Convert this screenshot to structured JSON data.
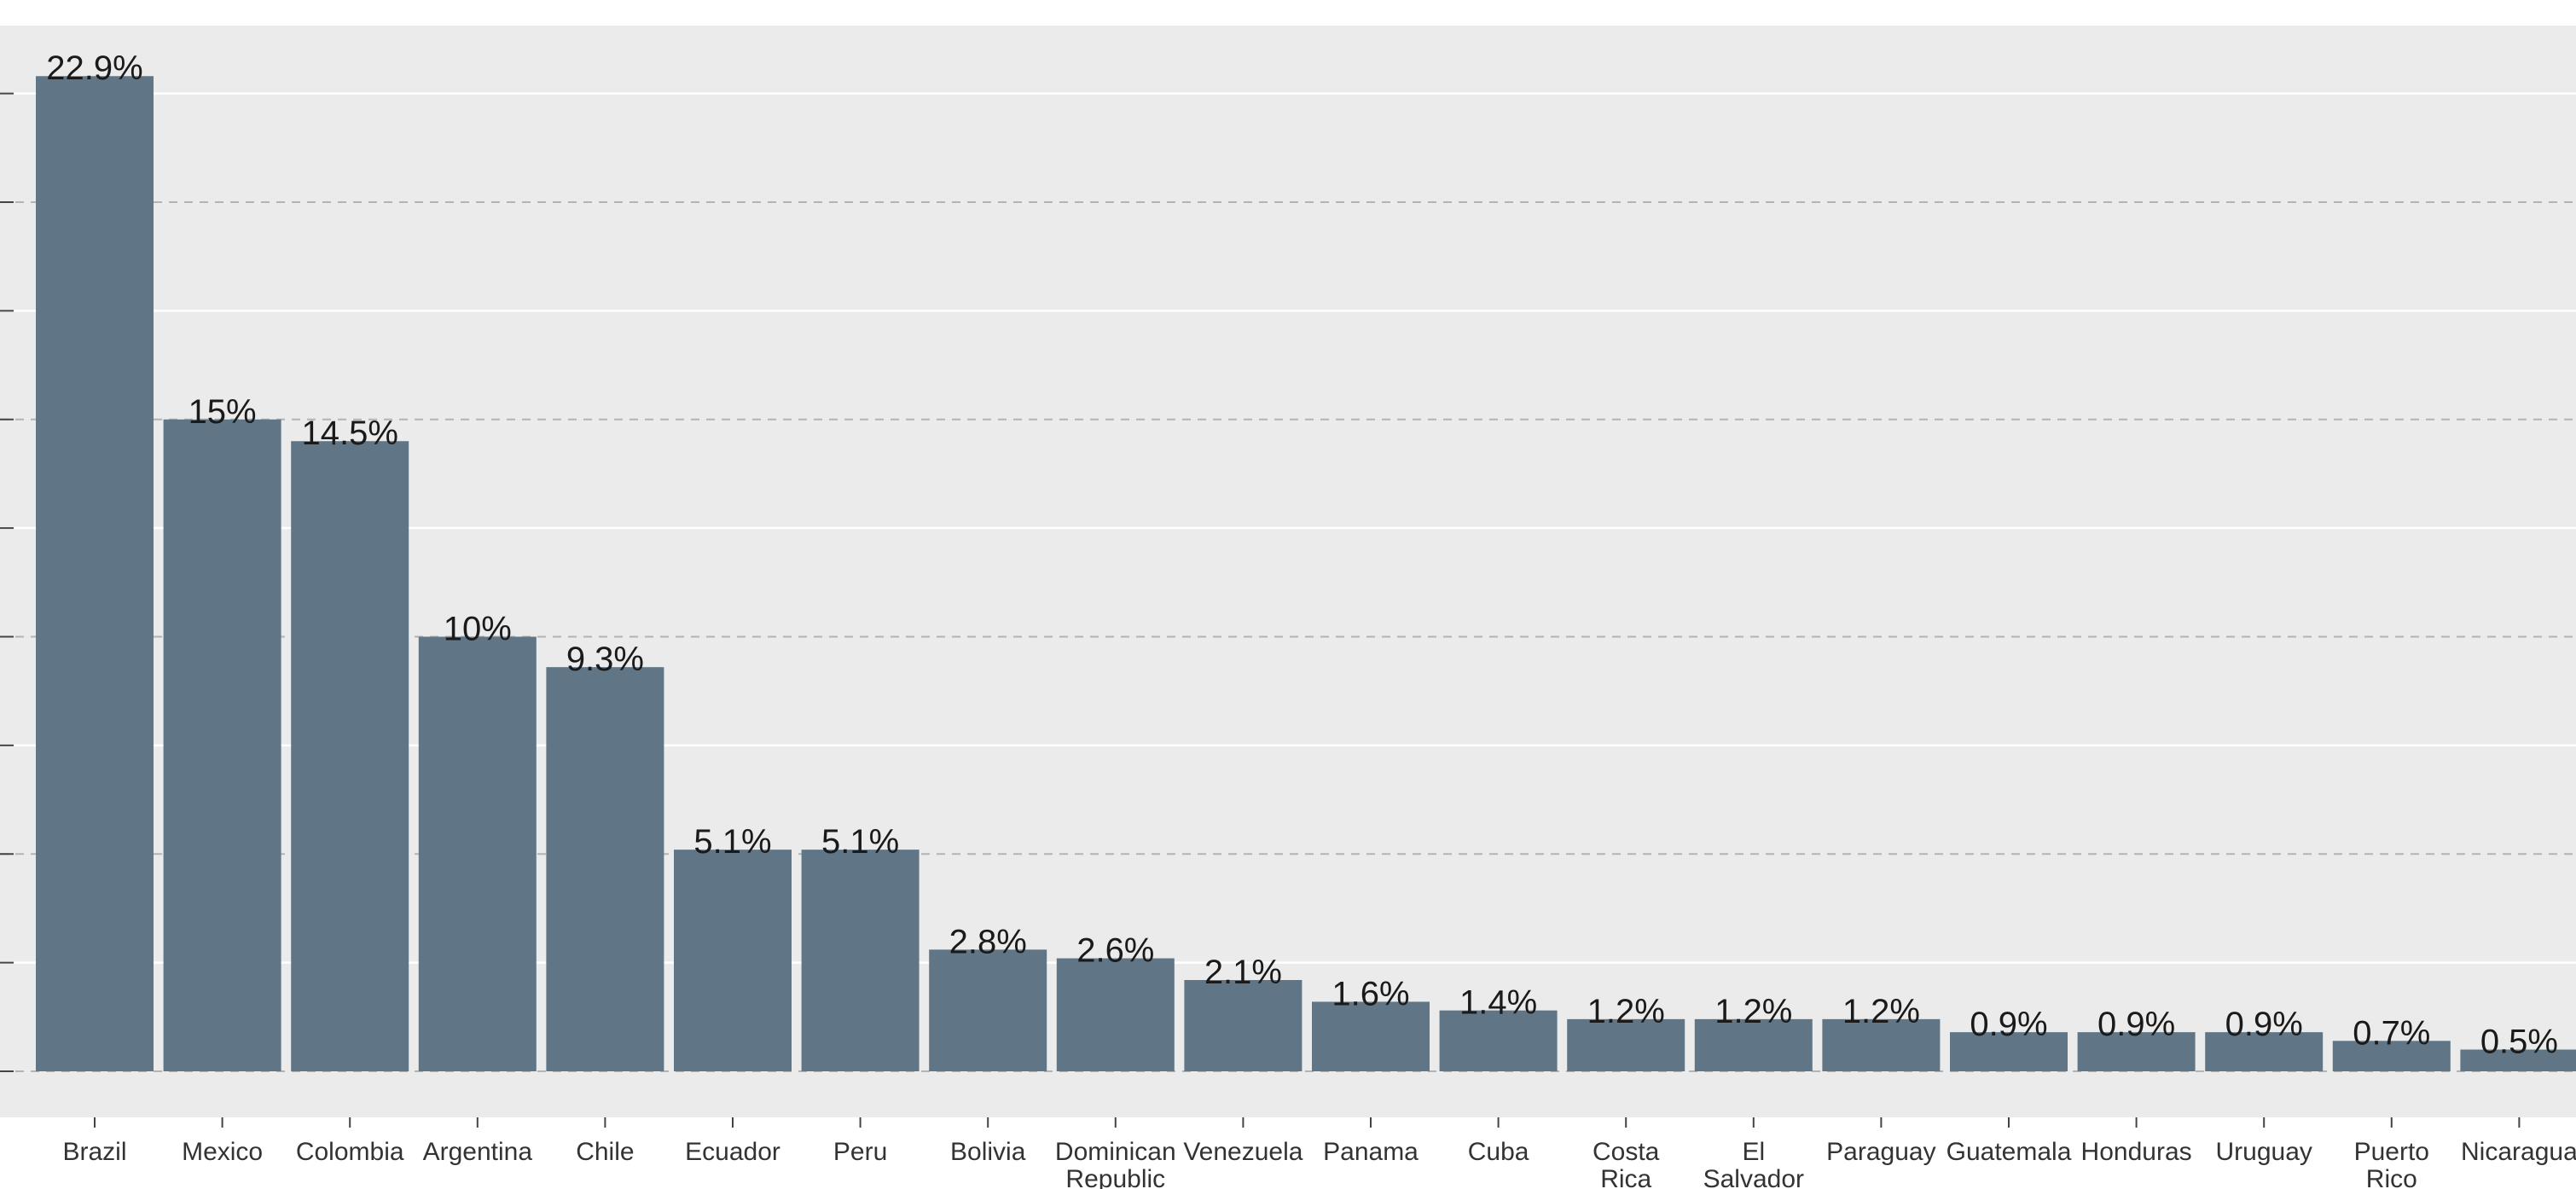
{
  "chart_data": {
    "type": "bar",
    "title": "",
    "xlabel": "",
    "ylabel": "",
    "ylim": [
      0,
      24.5
    ],
    "grid": true,
    "legend": "none",
    "bar_color": "#607686",
    "panel_background": "#ebebeb",
    "categories": [
      "Brazil",
      "Mexico",
      "Colombia",
      "Argentina",
      "Chile",
      "Ecuador",
      "Peru",
      "Bolivia",
      "Dominican Republic",
      "Venezuela",
      "Panama",
      "Cuba",
      "Costa Rica",
      "El Salvador",
      "Paraguay",
      "Guatemala",
      "Honduras",
      "Uruguay",
      "Puerto Rico",
      "Nicaragua"
    ],
    "values": [
      22.9,
      15,
      14.5,
      10,
      9.3,
      5.1,
      5.1,
      2.8,
      2.6,
      2.1,
      1.6,
      1.4,
      1.2,
      1.2,
      1.2,
      0.9,
      0.9,
      0.9,
      0.7,
      0.5
    ],
    "data_labels": [
      "22.9%",
      "15%",
      "14.5%",
      "10%",
      "9.3%",
      "5.1%",
      "5.1%",
      "2.8%",
      "2.6%",
      "2.1%",
      "1.6%",
      "1.4%",
      "1.2%",
      "1.2%",
      "1.2%",
      "0.9%",
      "0.9%",
      "0.9%",
      "0.7%",
      "0.5%"
    ]
  }
}
